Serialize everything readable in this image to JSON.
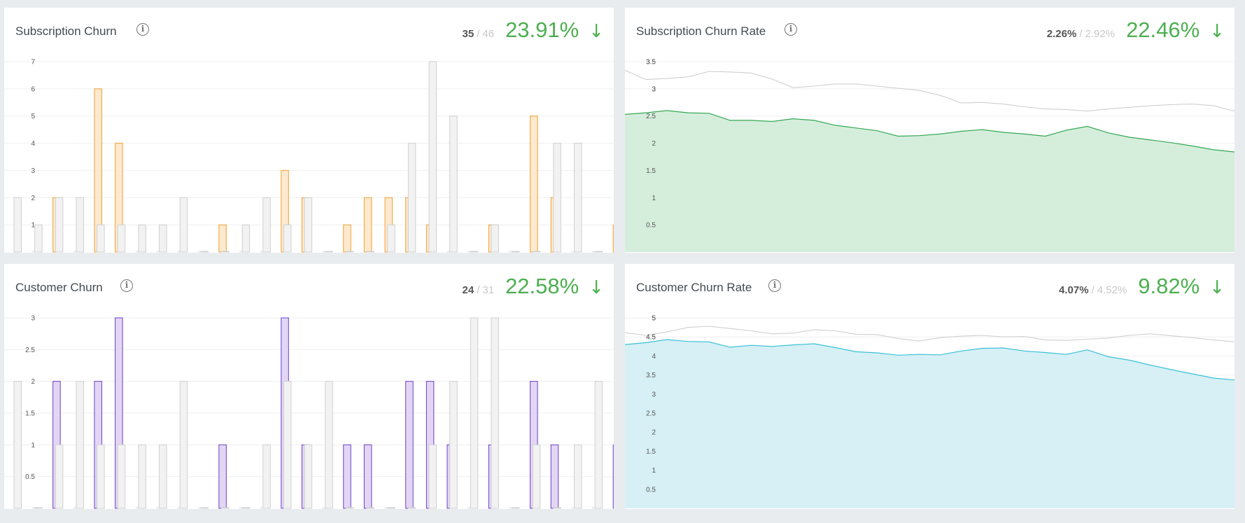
{
  "colors": {
    "accent": "#4caf50",
    "compare": "#d0d0d0",
    "compare_fill": "#f2f2f2",
    "orange": "#f0a030",
    "orange_fill": "#fde9cf",
    "purple": "#6a3fc8",
    "purple_fill": "#e3d6f5",
    "green_line": "#34a853",
    "green_fill": "#d5eedc",
    "cyan_line": "#3cc0d8",
    "cyan_fill": "#d6f0f5"
  },
  "info_icon": "info-icon",
  "arrow_icon": "arrow-down-icon",
  "cards": {
    "sub_churn": {
      "title": "Subscription Churn",
      "current": "35",
      "previous": "46",
      "change": "23.91%",
      "arrow": "↓"
    },
    "sub_rate": {
      "title": "Subscription Churn Rate",
      "current": "2.26%",
      "previous": "2.92%",
      "change": "22.46%",
      "arrow": "↓"
    },
    "cust_churn": {
      "title": "Customer Churn",
      "current": "24",
      "previous": "31",
      "change": "22.58%",
      "arrow": "↓"
    },
    "cust_rate": {
      "title": "Customer Churn Rate",
      "current": "4.07%",
      "previous": "4.52%",
      "change": "9.82%",
      "arrow": "↓"
    }
  },
  "chart_data": [
    {
      "id": "sub_churn",
      "type": "bar",
      "ylim": [
        0,
        7
      ],
      "yticks": [
        "1",
        "2",
        "3",
        "4",
        "5",
        "6",
        "7"
      ],
      "grid": true,
      "series": [
        {
          "values": [
            0,
            2,
            0,
            6,
            4,
            0,
            0,
            0,
            0,
            1,
            0,
            0,
            3,
            2,
            0,
            1,
            2,
            2,
            2,
            1,
            0,
            0,
            1,
            0,
            5,
            2,
            0,
            0,
            1,
            0
          ]
        },
        {
          "values": [
            2,
            1,
            2,
            2,
            1,
            1,
            1,
            1,
            2,
            0,
            0,
            1,
            2,
            1,
            2,
            0,
            0,
            0,
            1,
            4,
            7,
            5,
            0,
            1,
            0,
            0,
            4,
            4,
            0,
            1
          ]
        }
      ]
    },
    {
      "id": "sub_rate",
      "type": "area",
      "ylim": [
        0,
        3.5
      ],
      "yticks": [
        "0.5",
        "1",
        "1.5",
        "2",
        "2.5",
        "3",
        "3.5"
      ],
      "grid": true,
      "series": [
        {
          "values": [
            2.53,
            2.56,
            2.6,
            2.56,
            2.55,
            2.42,
            2.42,
            2.4,
            2.45,
            2.42,
            2.33,
            2.28,
            2.23,
            2.13,
            2.14,
            2.17,
            2.22,
            2.25,
            2.2,
            2.17,
            2.13,
            2.24,
            2.31,
            2.19,
            2.11,
            2.06,
            2.01,
            1.95,
            1.88,
            1.84
          ]
        },
        {
          "values": [
            3.34,
            3.17,
            3.19,
            3.22,
            3.32,
            3.31,
            3.29,
            3.18,
            3.02,
            3.05,
            3.09,
            3.09,
            3.05,
            3.01,
            2.97,
            2.88,
            2.74,
            2.75,
            2.72,
            2.67,
            2.63,
            2.62,
            2.59,
            2.63,
            2.66,
            2.69,
            2.71,
            2.72,
            2.69,
            2.59
          ]
        }
      ]
    },
    {
      "id": "cust_churn",
      "type": "bar",
      "ylim": [
        0,
        3
      ],
      "yticks": [
        "0.5",
        "1",
        "1.5",
        "2",
        "2.5",
        "3"
      ],
      "grid": true,
      "series": [
        {
          "values": [
            0,
            2,
            0,
            2,
            3,
            0,
            0,
            0,
            0,
            1,
            0,
            0,
            3,
            1,
            0,
            1,
            1,
            0,
            2,
            2,
            1,
            0,
            1,
            0,
            2,
            1,
            0,
            0,
            1,
            0
          ]
        },
        {
          "values": [
            2,
            0,
            1,
            2,
            1,
            1,
            1,
            1,
            2,
            0,
            0,
            0,
            1,
            2,
            1,
            2,
            0,
            0,
            0,
            0,
            1,
            2,
            3,
            3,
            0,
            1,
            0,
            1,
            2,
            1
          ]
        }
      ]
    },
    {
      "id": "cust_rate",
      "type": "area",
      "ylim": [
        0,
        5
      ],
      "yticks": [
        "0.5",
        "1",
        "1.5",
        "2",
        "2.5",
        "3",
        "3.5",
        "4",
        "4.5",
        "5"
      ],
      "grid": true,
      "series": [
        {
          "values": [
            4.3,
            4.35,
            4.43,
            4.38,
            4.37,
            4.23,
            4.28,
            4.25,
            4.29,
            4.32,
            4.22,
            4.11,
            4.08,
            4.02,
            4.04,
            4.03,
            4.13,
            4.2,
            4.21,
            4.13,
            4.09,
            4.04,
            4.16,
            3.98,
            3.89,
            3.76,
            3.64,
            3.53,
            3.42,
            3.37
          ]
        },
        {
          "values": [
            4.61,
            4.54,
            4.63,
            4.75,
            4.78,
            4.72,
            4.66,
            4.58,
            4.6,
            4.69,
            4.66,
            4.57,
            4.56,
            4.46,
            4.39,
            4.48,
            4.52,
            4.54,
            4.5,
            4.51,
            4.42,
            4.41,
            4.44,
            4.47,
            4.54,
            4.58,
            4.53,
            4.48,
            4.42,
            4.37
          ]
        }
      ]
    }
  ]
}
